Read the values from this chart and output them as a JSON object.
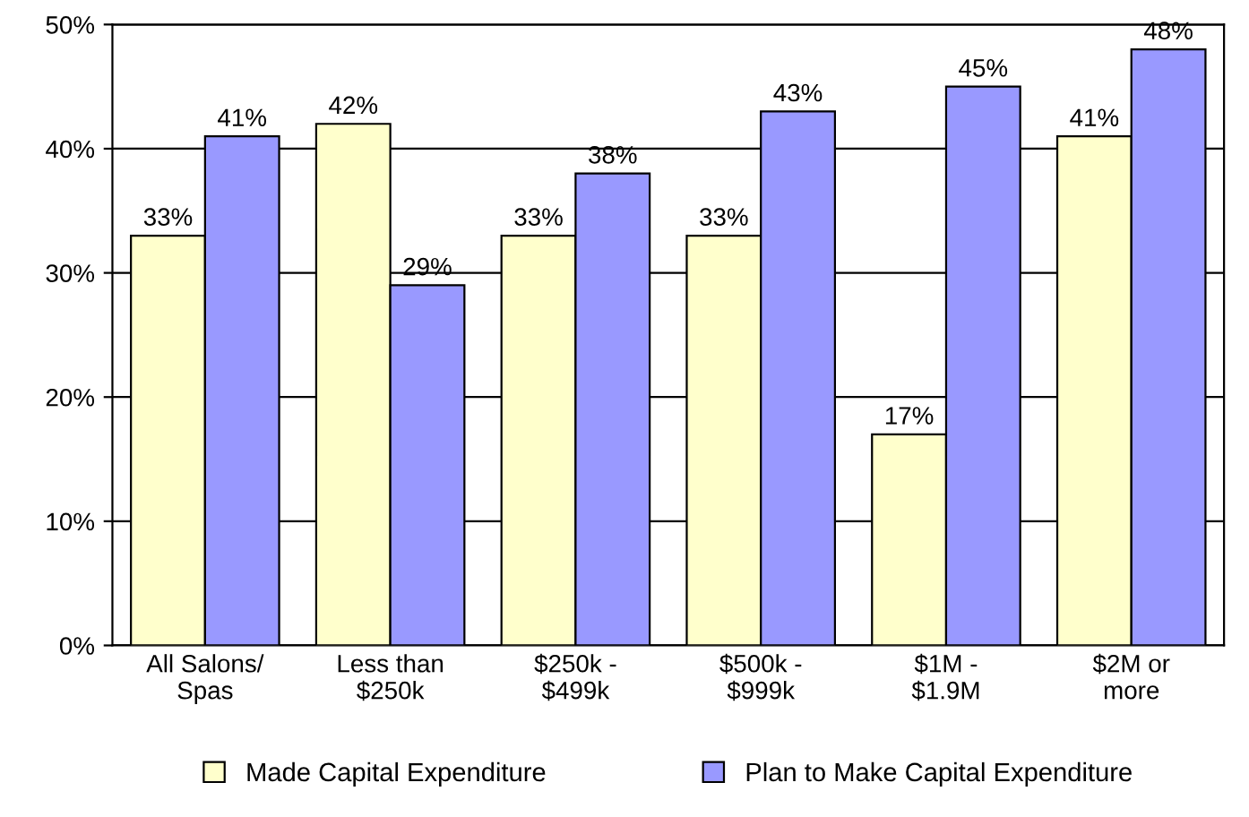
{
  "chart_data": {
    "type": "bar",
    "categories": [
      "All Salons/\nSpas",
      "Less than\n$250k",
      "$250k -\n$499k",
      "$500k -\n$999k",
      "$1M -\n$1.9M",
      "$2M or\nmore"
    ],
    "series": [
      {
        "name": "Made Capital Expenditure",
        "color": "#ffffcc",
        "values": [
          33,
          42,
          33,
          33,
          17,
          41
        ],
        "value_labels": [
          "33%",
          "42%",
          "33%",
          "33%",
          "17%",
          "41%"
        ]
      },
      {
        "name": "Plan to Make Capital Expenditure",
        "color": "#9999ff",
        "values": [
          41,
          29,
          38,
          43,
          45,
          48
        ],
        "value_labels": [
          "41%",
          "29%",
          "38%",
          "43%",
          "45%",
          "48%"
        ]
      }
    ],
    "ylim": [
      0,
      50
    ],
    "yticks": [
      {
        "value": 0,
        "label": "0%"
      },
      {
        "value": 10,
        "label": "10%"
      },
      {
        "value": 20,
        "label": "20%"
      },
      {
        "value": 30,
        "label": "30%"
      },
      {
        "value": 40,
        "label": "40%"
      },
      {
        "value": 50,
        "label": "50%"
      }
    ],
    "grid": "y",
    "legend": "bottom"
  }
}
